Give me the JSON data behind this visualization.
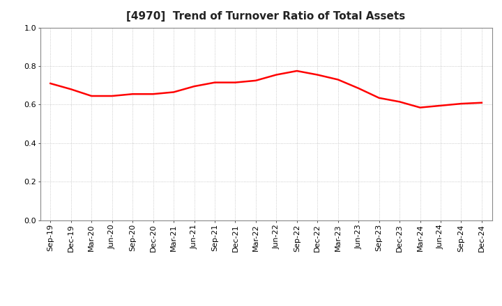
{
  "title": "[4970]  Trend of Turnover Ratio of Total Assets",
  "x_labels": [
    "Sep-19",
    "Dec-19",
    "Mar-20",
    "Jun-20",
    "Sep-20",
    "Dec-20",
    "Mar-21",
    "Jun-21",
    "Sep-21",
    "Dec-21",
    "Mar-22",
    "Jun-22",
    "Sep-22",
    "Dec-22",
    "Mar-23",
    "Jun-23",
    "Sep-23",
    "Dec-23",
    "Mar-24",
    "Jun-24",
    "Sep-24",
    "Dec-24"
  ],
  "y_values": [
    0.71,
    0.68,
    0.645,
    0.645,
    0.655,
    0.655,
    0.665,
    0.695,
    0.715,
    0.715,
    0.725,
    0.755,
    0.775,
    0.755,
    0.73,
    0.685,
    0.635,
    0.615,
    0.585,
    0.595,
    0.605,
    0.61
  ],
  "ylim": [
    0.0,
    1.0
  ],
  "yticks": [
    0.0,
    0.2,
    0.4,
    0.6,
    0.8,
    1.0
  ],
  "line_color": "#ff0000",
  "line_width": 1.8,
  "background_color": "#ffffff",
  "plot_bg_color": "#ffffff",
  "grid_color": "#bbbbbb",
  "title_fontsize": 11,
  "tick_fontsize": 8,
  "title_color": "#222222"
}
